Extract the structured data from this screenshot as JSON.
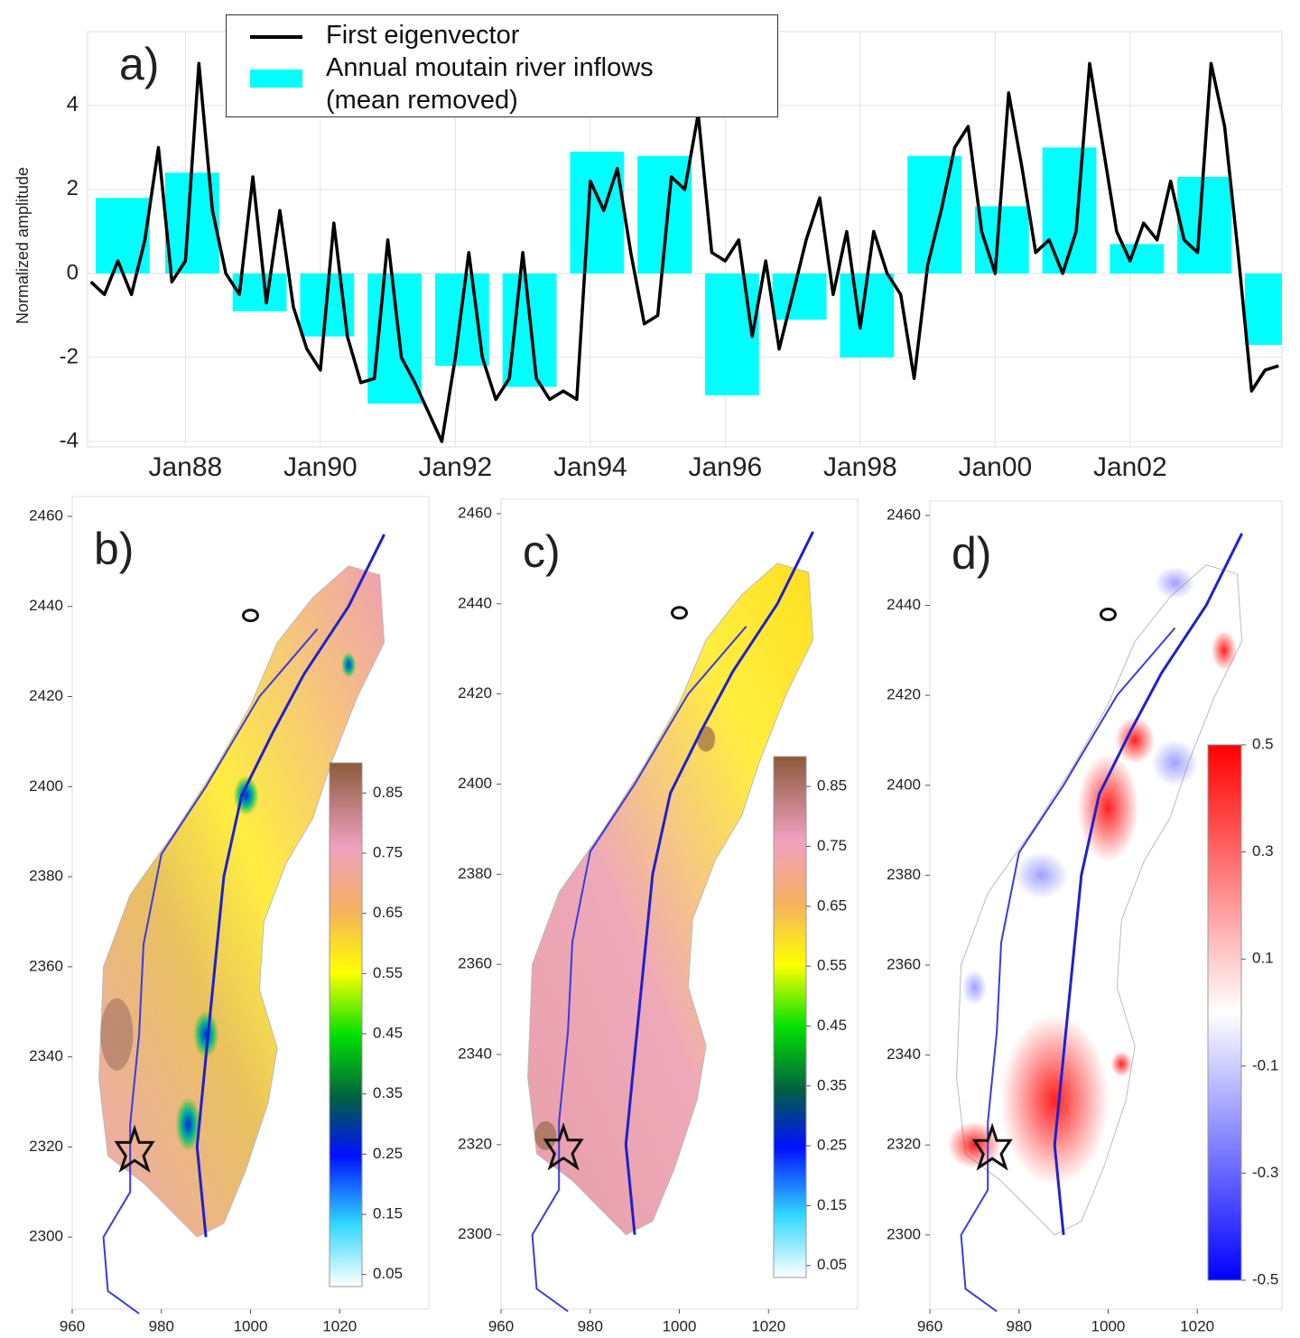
{
  "chart_data": [
    {
      "type": "bar",
      "panel_label": "a)",
      "ylabel": "Normalized amplitude",
      "xlim": [
        1986.55,
        2004.25
      ],
      "ylim": [
        -4.13,
        5.76
      ],
      "xticks": [
        {
          "value": 1988,
          "label": "Jan88"
        },
        {
          "value": 1990,
          "label": "Jan90"
        },
        {
          "value": 1992,
          "label": "Jan92"
        },
        {
          "value": 1994,
          "label": "Jan94"
        },
        {
          "value": 1996,
          "label": "Jan96"
        },
        {
          "value": 1998,
          "label": "Jan98"
        },
        {
          "value": 2000,
          "label": "Jan00"
        },
        {
          "value": 2002,
          "label": "Jan02"
        }
      ],
      "yticks": [
        -4,
        -2,
        0,
        2,
        4
      ],
      "grid": true,
      "series": [
        {
          "name": "Annual moutain river inflows (mean removed)",
          "type": "bar",
          "color": "#00ffff",
          "x": [
            1987.07,
            1988.1,
            1989.1,
            1990.1,
            1991.1,
            1992.1,
            1993.1,
            1994.1,
            1995.1,
            1996.1,
            1997.1,
            1998.1,
            1999.1,
            2000.1,
            2001.1,
            2002.1,
            2003.1,
            2004.1
          ],
          "values": [
            1.8,
            2.4,
            -0.9,
            -1.5,
            -3.1,
            -2.2,
            -2.7,
            2.9,
            2.8,
            -2.9,
            -1.1,
            -2.0,
            2.8,
            1.6,
            3.0,
            0.7,
            2.3,
            -1.7
          ]
        },
        {
          "name": "First eigenvector",
          "type": "line",
          "color": "#000000",
          "x": [
            1986.6,
            1986.8,
            1987.0,
            1987.2,
            1987.4,
            1987.6,
            1987.8,
            1988.0,
            1988.2,
            1988.4,
            1988.6,
            1988.8,
            1989.0,
            1989.2,
            1989.4,
            1989.6,
            1989.8,
            1990.0,
            1990.2,
            1990.4,
            1990.6,
            1990.8,
            1991.0,
            1991.2,
            1991.4,
            1991.6,
            1991.8,
            1992.0,
            1992.2,
            1992.4,
            1992.6,
            1992.8,
            1993.0,
            1993.2,
            1993.4,
            1993.6,
            1993.8,
            1994.0,
            1994.2,
            1994.4,
            1994.6,
            1994.8,
            1995.0,
            1995.2,
            1995.4,
            1995.6,
            1995.8,
            1996.0,
            1996.2,
            1996.4,
            1996.6,
            1996.8,
            1997.0,
            1997.2,
            1997.4,
            1997.6,
            1997.8,
            1998.0,
            1998.2,
            1998.4,
            1998.6,
            1998.8,
            1999.0,
            1999.2,
            1999.4,
            1999.6,
            1999.8,
            2000.0,
            2000.2,
            2000.4,
            2000.6,
            2000.8,
            2001.0,
            2001.2,
            2001.4,
            2001.6,
            2001.8,
            2002.0,
            2002.2,
            2002.4,
            2002.6,
            2002.8,
            2003.0,
            2003.2,
            2003.4,
            2003.6,
            2003.8,
            2004.0,
            2004.2
          ],
          "values": [
            -0.2,
            -0.5,
            0.3,
            -0.5,
            0.8,
            3.0,
            -0.2,
            0.3,
            5.0,
            1.5,
            0.0,
            -0.5,
            2.3,
            -0.7,
            1.5,
            -0.8,
            -1.8,
            -2.3,
            1.2,
            -1.5,
            -2.6,
            -2.5,
            0.8,
            -2.0,
            -2.6,
            -3.3,
            -4.0,
            -2.0,
            0.5,
            -2.0,
            -3.0,
            -2.5,
            0.5,
            -2.5,
            -3.0,
            -2.8,
            -3.0,
            2.2,
            1.5,
            2.5,
            0.5,
            -1.2,
            -1.0,
            2.3,
            2.0,
            3.8,
            0.5,
            0.3,
            0.8,
            -1.5,
            0.3,
            -1.8,
            -0.5,
            0.8,
            1.8,
            -0.5,
            1.0,
            -1.3,
            1.0,
            0.0,
            -0.5,
            -2.5,
            0.2,
            1.5,
            3.0,
            3.5,
            1.0,
            0.0,
            4.3,
            2.5,
            0.5,
            0.8,
            0.0,
            1.0,
            5.0,
            3.0,
            1.0,
            0.3,
            1.2,
            0.8,
            2.2,
            0.8,
            0.5,
            5.0,
            3.5,
            0.5,
            -2.8,
            -2.3,
            -2.2
          ]
        }
      ]
    },
    {
      "type": "map",
      "panel_label": "b)",
      "xlim": [
        960,
        1040
      ],
      "ylim": [
        2284,
        2464.4
      ],
      "xticks": [
        960,
        980,
        1000,
        1020
      ],
      "yticks": [
        2300,
        2320,
        2340,
        2360,
        2380,
        2400,
        2420,
        2440,
        2460
      ],
      "colorbar": {
        "lim": [
          0.03,
          0.9
        ],
        "ticks": [
          0.05,
          0.15,
          0.25,
          0.35,
          0.45,
          0.55,
          0.65,
          0.75,
          0.85
        ]
      }
    },
    {
      "type": "map",
      "panel_label": "c)",
      "xlim": [
        960,
        1040
      ],
      "ylim": [
        2283.5,
        2463.2
      ],
      "xticks": [
        960,
        980,
        1000,
        1020
      ],
      "yticks": [
        2300,
        2320,
        2340,
        2360,
        2380,
        2400,
        2420,
        2440,
        2460
      ],
      "colorbar": {
        "lim": [
          0.03,
          0.9
        ],
        "ticks": [
          0.05,
          0.15,
          0.25,
          0.35,
          0.45,
          0.55,
          0.65,
          0.75,
          0.85
        ]
      }
    },
    {
      "type": "map",
      "panel_label": "d)",
      "xlim": [
        960,
        1039
      ],
      "ylim": [
        2283.5,
        2463.2
      ],
      "xticks": [
        960,
        980,
        1000,
        1020
      ],
      "yticks": [
        2300,
        2320,
        2340,
        2360,
        2380,
        2400,
        2420,
        2440,
        2460
      ],
      "colorbar": {
        "lim": [
          -0.5,
          0.5
        ],
        "ticks": [
          0.5,
          0.3,
          0.1,
          -0.1,
          -0.3,
          -0.5
        ]
      }
    }
  ]
}
